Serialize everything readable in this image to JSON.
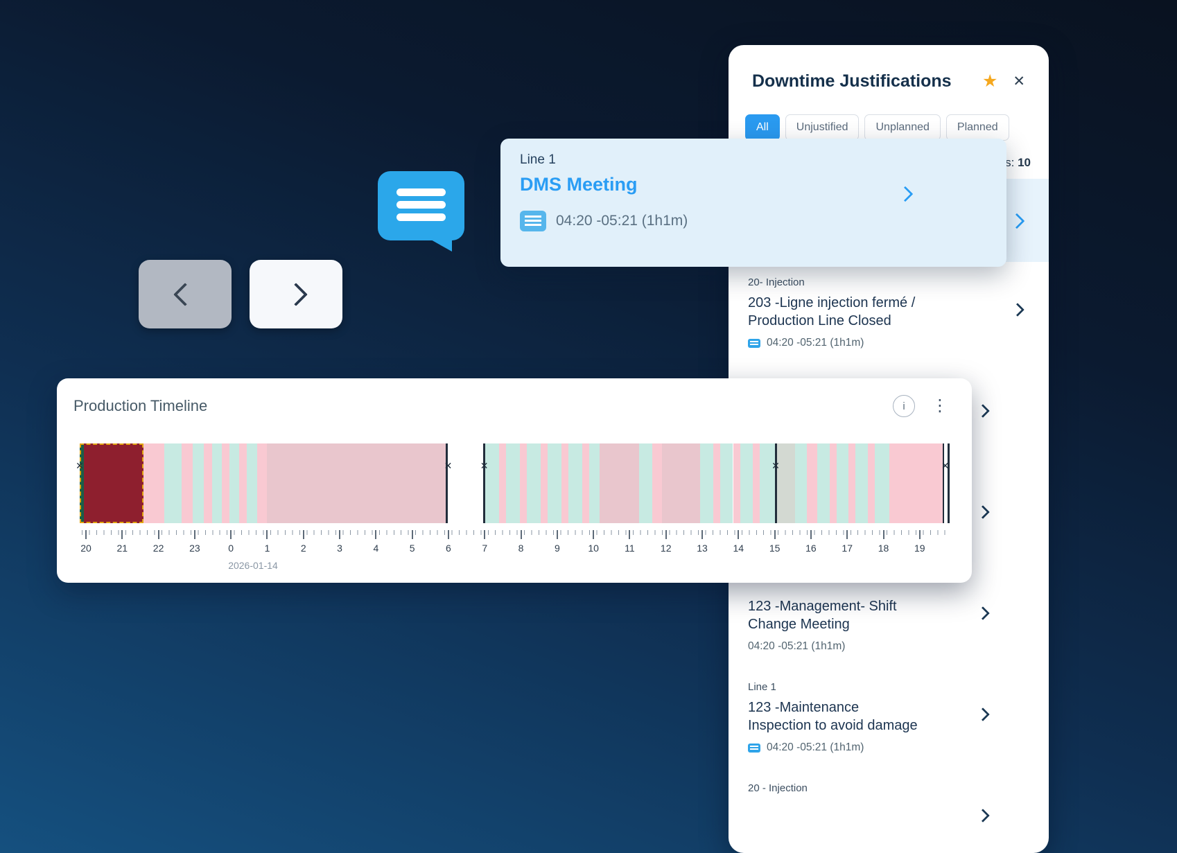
{
  "colors": {
    "accent_blue": "#2a9df4",
    "active_chip": "#2a9af0",
    "star": "#f5a81f",
    "tooltip_bg": "#e1f0fa",
    "highlight_row_bg": "#e7f3fc",
    "timeline": {
      "g": "#1b5e48",
      "r": "#8e1f2e",
      "p": "#f9c9d2",
      "t": "#c7eae2",
      "m": "#e9c6cd",
      "w": "#ffffff",
      "d": "#222e3c",
      "gr": "#d3d9d2"
    },
    "selection_border": "#e2a40f"
  },
  "tooltip": {
    "line_label": "Line 1",
    "title": "DMS Meeting",
    "time_range": "04:20 -05:21 (1h1m)"
  },
  "timeline_card": {
    "title": "Production Timeline",
    "info_icon_label": "i",
    "dots_icon": "⋮",
    "date_label": "2026-01-14"
  },
  "chart_data": {
    "type": "timeline",
    "title": "Production Timeline",
    "date": "2026-01-14",
    "axis_start_hour": 20,
    "hour_labels": [
      "20",
      "21",
      "22",
      "23",
      "0",
      "1",
      "2",
      "3",
      "4",
      "5",
      "6",
      "7",
      "8",
      "9",
      "10",
      "11",
      "12",
      "13",
      "14",
      "15",
      "16",
      "17",
      "18",
      "19"
    ],
    "segments": [
      [
        0,
        0.5,
        "g"
      ],
      [
        0.5,
        7.3,
        "r"
      ],
      [
        7.3,
        9.7,
        "p"
      ],
      [
        9.7,
        11.7,
        "t"
      ],
      [
        11.7,
        13,
        "p"
      ],
      [
        13,
        14.3,
        "t"
      ],
      [
        14.3,
        15.2,
        "p"
      ],
      [
        15.2,
        16.3,
        "t"
      ],
      [
        16.3,
        17.2,
        "p"
      ],
      [
        17.2,
        18.3,
        "t"
      ],
      [
        18.3,
        19.2,
        "p"
      ],
      [
        19.2,
        20.4,
        "t"
      ],
      [
        20.4,
        21.5,
        "p"
      ],
      [
        21.5,
        42.1,
        "m"
      ],
      [
        42.1,
        42.35,
        "d"
      ],
      [
        42.35,
        46.4,
        "w"
      ],
      [
        46.4,
        46.65,
        "d"
      ],
      [
        46.65,
        48.2,
        "t"
      ],
      [
        48.2,
        49,
        "p"
      ],
      [
        49,
        50.6,
        "t"
      ],
      [
        50.6,
        51.4,
        "p"
      ],
      [
        51.4,
        53,
        "t"
      ],
      [
        53,
        53.8,
        "p"
      ],
      [
        53.8,
        55.4,
        "t"
      ],
      [
        55.4,
        56.2,
        "p"
      ],
      [
        56.2,
        57.8,
        "t"
      ],
      [
        57.8,
        58.6,
        "p"
      ],
      [
        58.6,
        59.8,
        "t"
      ],
      [
        59.8,
        64.3,
        "m"
      ],
      [
        64.3,
        65.8,
        "t"
      ],
      [
        65.8,
        66.9,
        "p"
      ],
      [
        66.9,
        71.3,
        "m"
      ],
      [
        71.3,
        72.8,
        "t"
      ],
      [
        72.8,
        73.6,
        "p"
      ],
      [
        73.6,
        75.1,
        "t"
      ],
      [
        75.1,
        75.9,
        "p"
      ],
      [
        75.9,
        77.4,
        "t"
      ],
      [
        77.4,
        78.2,
        "p"
      ],
      [
        78.2,
        79.9,
        "t"
      ],
      [
        79.9,
        80.15,
        "d"
      ],
      [
        80.15,
        82.2,
        "gr"
      ],
      [
        82.2,
        83.6,
        "t"
      ],
      [
        83.6,
        84.8,
        "p"
      ],
      [
        84.8,
        86.2,
        "t"
      ],
      [
        86.2,
        87,
        "p"
      ],
      [
        87,
        88.4,
        "t"
      ],
      [
        88.4,
        89.2,
        "p"
      ],
      [
        89.2,
        90.6,
        "t"
      ],
      [
        90.6,
        91.4,
        "p"
      ],
      [
        91.4,
        93.1,
        "t"
      ],
      [
        93.1,
        99.2,
        "p"
      ],
      [
        99.2,
        99.4,
        "d"
      ],
      [
        99.4,
        99.75,
        "w"
      ],
      [
        99.75,
        100,
        "d"
      ]
    ],
    "markers": [
      0,
      42.35,
      46.5,
      80,
      99.5
    ],
    "selection": [
      0,
      7.3
    ]
  },
  "panel": {
    "title": "Downtime Justifications",
    "star_icon": "★",
    "close_icon": "✕",
    "filters": [
      {
        "label": "All",
        "active": true
      },
      {
        "label": "Unjustified",
        "active": false
      },
      {
        "label": "Unplanned",
        "active": false
      },
      {
        "label": "Planned",
        "active": false
      }
    ],
    "count_label": "s:",
    "count_value": "10",
    "items": [
      {
        "category": "20- Injection",
        "title": "203 -Ligne injection fermé /\nProduction Line Closed",
        "time": "04:20 -05:21 (1h1m)",
        "comment_icon": true
      },
      {
        "category": "20 - Injection",
        "title": "",
        "time": "",
        "comment_icon": false
      },
      {
        "category": "",
        "title": "",
        "time": "",
        "comment_icon": false
      },
      {
        "category": "",
        "title": "123 -Management- Shift\nChange Meeting",
        "time": "04:20 -05:21 (1h1m)",
        "comment_icon": false
      },
      {
        "category": "Line 1",
        "title": "123 -Maintenance\nInspection to avoid damage",
        "time": "04:20 -05:21 (1h1m)",
        "comment_icon": true
      },
      {
        "category": "20 - Injection",
        "title": "",
        "time": "",
        "comment_icon": false
      }
    ]
  }
}
